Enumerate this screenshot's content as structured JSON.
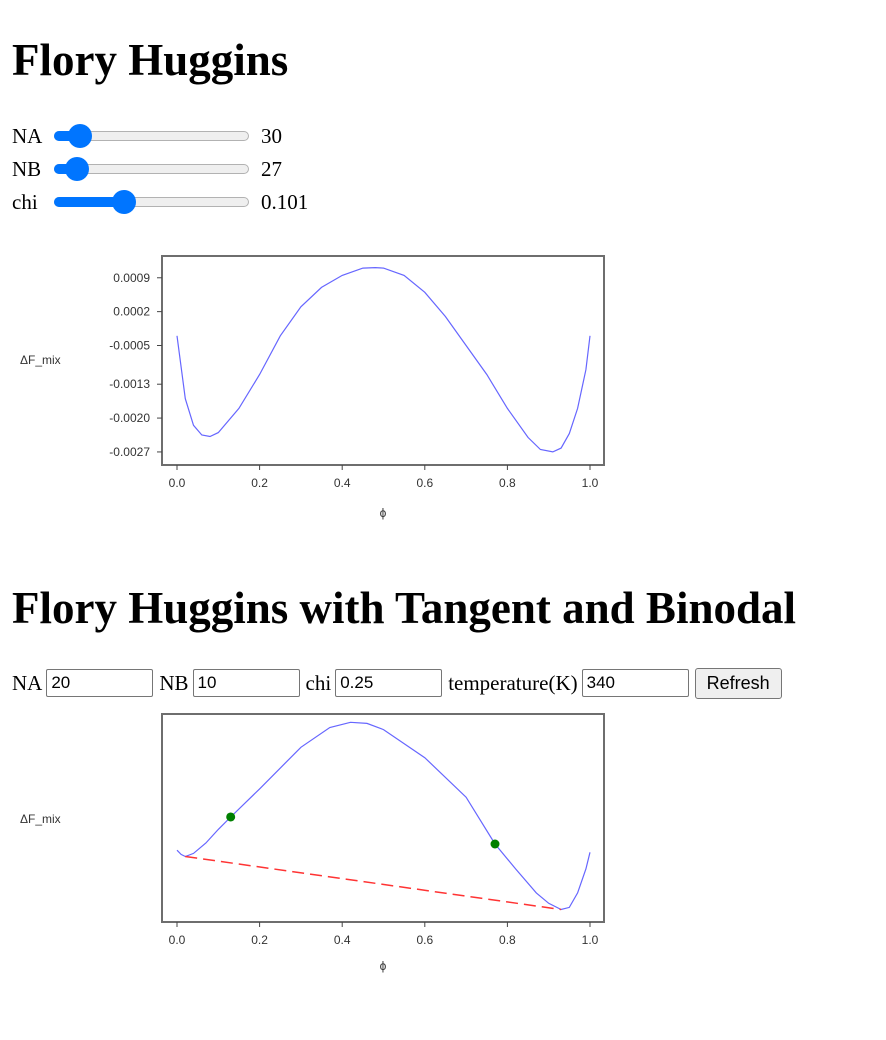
{
  "section1": {
    "title": "Flory Huggins",
    "sliders": [
      {
        "label": "NA",
        "value": "30",
        "fraction": 0.135
      },
      {
        "label": "NB",
        "value": "27",
        "fraction": 0.12
      },
      {
        "label": "chi",
        "value": "0.101",
        "fraction": 0.36
      }
    ]
  },
  "section2": {
    "title": "Flory Huggins with Tangent and Binodal",
    "fields": [
      {
        "label": "NA",
        "value": "20"
      },
      {
        "label": "NB",
        "value": "10"
      },
      {
        "label": "chi",
        "value": "0.25"
      },
      {
        "label": "temperature(K)",
        "value": "340"
      }
    ],
    "refresh_label": "Refresh"
  },
  "colors": {
    "curve": "#6666ff",
    "tangent": "#ff3333",
    "binodal_point": "#008000",
    "slider": "#0075ff"
  },
  "chart_data": [
    {
      "type": "line",
      "xlabel": "ϕ",
      "ylabel": "ΔF_mix",
      "xlim": [
        0,
        1
      ],
      "ylim": [
        -0.00297,
        0.00135
      ],
      "xticks": [
        "0.0",
        "0.2",
        "0.4",
        "0.6",
        "0.8",
        "1.0"
      ],
      "yticks": [
        "0.0009",
        "0.0002",
        "-0.0005",
        "-0.0013",
        "-0.0020",
        "-0.0027"
      ],
      "ytick_values": [
        0.0009,
        0.0002,
        -0.0005,
        -0.0013,
        -0.002,
        -0.0027
      ],
      "grid": false,
      "series": [
        {
          "x": [
            0.0,
            0.02,
            0.04,
            0.06,
            0.08,
            0.1,
            0.15,
            0.2,
            0.25,
            0.3,
            0.35,
            0.4,
            0.45,
            0.48,
            0.5,
            0.55,
            0.6,
            0.65,
            0.7,
            0.75,
            0.8,
            0.85,
            0.88,
            0.91,
            0.93,
            0.95,
            0.97,
            0.99,
            1.0
          ],
          "y": [
            -0.0003,
            -0.0016,
            -0.00215,
            -0.00235,
            -0.00238,
            -0.0023,
            -0.0018,
            -0.0011,
            -0.0003,
            0.0003,
            0.0007,
            0.00095,
            0.0011,
            0.00111,
            0.0011,
            0.00095,
            0.0006,
            0.0001,
            -0.0005,
            -0.0011,
            -0.0018,
            -0.0024,
            -0.00265,
            -0.0027,
            -0.00262,
            -0.00232,
            -0.0018,
            -0.001,
            -0.0003
          ]
        }
      ]
    },
    {
      "type": "line",
      "xlabel": "ϕ",
      "ylabel": "ΔF_mix",
      "xlim": [
        0,
        1
      ],
      "ylim": [
        0,
        1
      ],
      "xticks": [
        "0.0",
        "0.2",
        "0.4",
        "0.6",
        "0.8",
        "1.0"
      ],
      "grid": false,
      "series": [
        {
          "x": [
            0.0,
            0.01,
            0.02,
            0.04,
            0.07,
            0.1,
            0.13,
            0.2,
            0.3,
            0.37,
            0.42,
            0.46,
            0.5,
            0.6,
            0.7,
            0.77,
            0.82,
            0.87,
            0.9,
            0.93,
            0.95,
            0.97,
            0.99,
            1.0
          ],
          "y": [
            0.345,
            0.325,
            0.315,
            0.33,
            0.38,
            0.445,
            0.505,
            0.64,
            0.84,
            0.935,
            0.96,
            0.955,
            0.925,
            0.79,
            0.6,
            0.375,
            0.255,
            0.14,
            0.09,
            0.06,
            0.07,
            0.14,
            0.255,
            0.335
          ]
        }
      ],
      "tangent": {
        "x": [
          0.02,
          0.93
        ],
        "y": [
          0.315,
          0.06
        ]
      },
      "binodal_points": {
        "x": [
          0.13,
          0.77
        ],
        "y": [
          0.505,
          0.375
        ]
      }
    }
  ]
}
